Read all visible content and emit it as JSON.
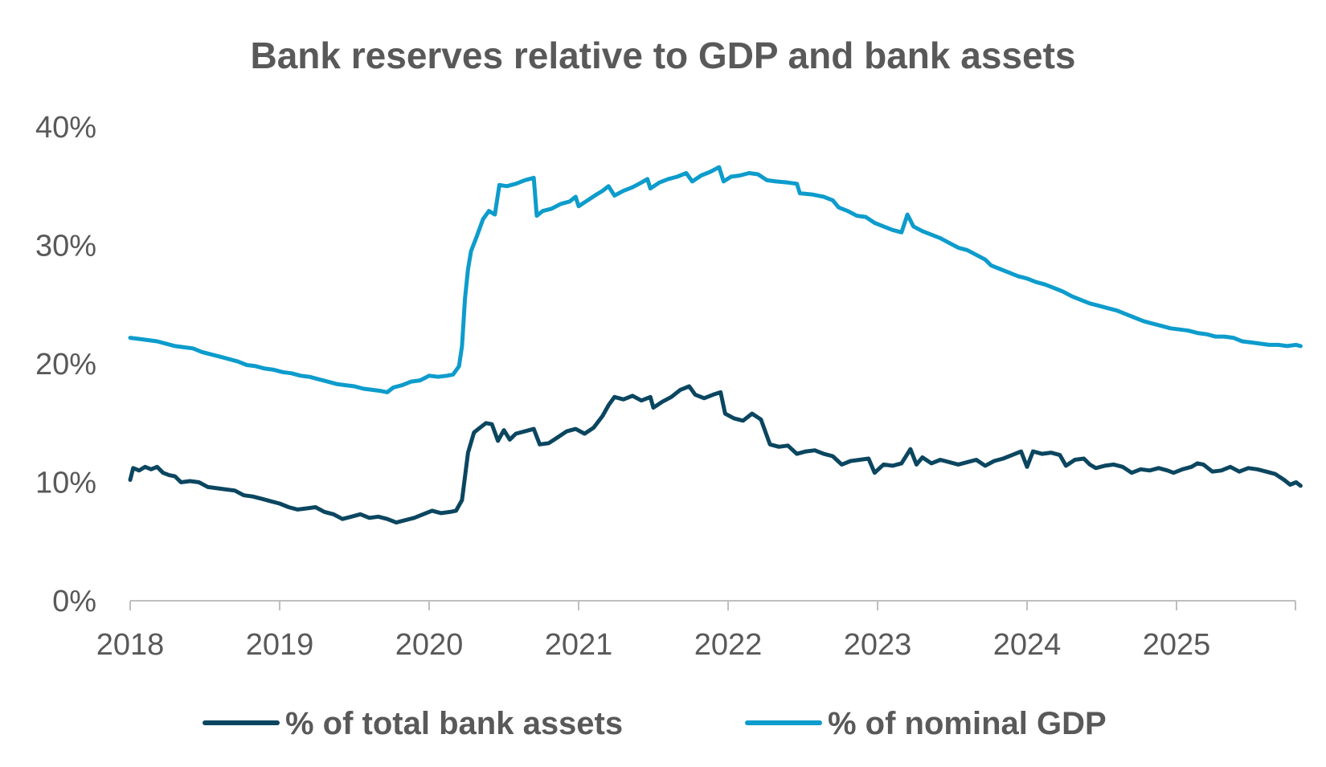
{
  "chart_data": {
    "type": "line",
    "title": "Bank reserves relative to GDP and bank assets",
    "xlabel": "",
    "ylabel": "",
    "ylim": [
      0,
      40
    ],
    "xlim": [
      2018.0,
      2025.83
    ],
    "grid": false,
    "legend_position": "bottom",
    "y_ticks": [
      {
        "value": 0,
        "label": "0%"
      },
      {
        "value": 10,
        "label": "10%"
      },
      {
        "value": 20,
        "label": "20%"
      },
      {
        "value": 30,
        "label": "30%"
      },
      {
        "value": 40,
        "label": "40%"
      }
    ],
    "x_ticks": [
      {
        "value": 2018,
        "label": "2018"
      },
      {
        "value": 2019,
        "label": "2019"
      },
      {
        "value": 2020,
        "label": "2020"
      },
      {
        "value": 2021,
        "label": "2021"
      },
      {
        "value": 2022,
        "label": "2022"
      },
      {
        "value": 2023,
        "label": "2023"
      },
      {
        "value": 2024,
        "label": "2024"
      },
      {
        "value": 2025,
        "label": "2025"
      }
    ],
    "series": [
      {
        "name": "% of total bank assets",
        "color": "#0b4660",
        "points": [
          [
            2018.0,
            10.2
          ],
          [
            2018.02,
            11.2
          ],
          [
            2018.06,
            11.0
          ],
          [
            2018.1,
            11.3
          ],
          [
            2018.14,
            11.1
          ],
          [
            2018.18,
            11.3
          ],
          [
            2018.22,
            10.8
          ],
          [
            2018.26,
            10.6
          ],
          [
            2018.3,
            10.5
          ],
          [
            2018.34,
            10.0
          ],
          [
            2018.4,
            10.1
          ],
          [
            2018.46,
            10.0
          ],
          [
            2018.52,
            9.6
          ],
          [
            2018.58,
            9.5
          ],
          [
            2018.64,
            9.4
          ],
          [
            2018.7,
            9.3
          ],
          [
            2018.76,
            8.9
          ],
          [
            2018.82,
            8.8
          ],
          [
            2018.88,
            8.6
          ],
          [
            2018.94,
            8.4
          ],
          [
            2019.0,
            8.2
          ],
          [
            2019.06,
            7.9
          ],
          [
            2019.12,
            7.7
          ],
          [
            2019.18,
            7.8
          ],
          [
            2019.24,
            7.9
          ],
          [
            2019.3,
            7.5
          ],
          [
            2019.36,
            7.3
          ],
          [
            2019.42,
            6.9
          ],
          [
            2019.48,
            7.1
          ],
          [
            2019.54,
            7.3
          ],
          [
            2019.6,
            7.0
          ],
          [
            2019.66,
            7.1
          ],
          [
            2019.72,
            6.9
          ],
          [
            2019.78,
            6.6
          ],
          [
            2019.84,
            6.8
          ],
          [
            2019.9,
            7.0
          ],
          [
            2019.96,
            7.3
          ],
          [
            2020.02,
            7.6
          ],
          [
            2020.08,
            7.4
          ],
          [
            2020.14,
            7.5
          ],
          [
            2020.18,
            7.6
          ],
          [
            2020.22,
            8.5
          ],
          [
            2020.26,
            12.5
          ],
          [
            2020.3,
            14.2
          ],
          [
            2020.34,
            14.6
          ],
          [
            2020.38,
            15.0
          ],
          [
            2020.42,
            14.9
          ],
          [
            2020.46,
            13.5
          ],
          [
            2020.5,
            14.4
          ],
          [
            2020.54,
            13.6
          ],
          [
            2020.58,
            14.1
          ],
          [
            2020.64,
            14.3
          ],
          [
            2020.7,
            14.5
          ],
          [
            2020.74,
            13.2
          ],
          [
            2020.8,
            13.3
          ],
          [
            2020.86,
            13.8
          ],
          [
            2020.92,
            14.3
          ],
          [
            2020.98,
            14.5
          ],
          [
            2021.04,
            14.1
          ],
          [
            2021.1,
            14.6
          ],
          [
            2021.16,
            15.6
          ],
          [
            2021.2,
            16.5
          ],
          [
            2021.24,
            17.2
          ],
          [
            2021.3,
            17.0
          ],
          [
            2021.36,
            17.3
          ],
          [
            2021.42,
            16.9
          ],
          [
            2021.48,
            17.2
          ],
          [
            2021.5,
            16.3
          ],
          [
            2021.56,
            16.8
          ],
          [
            2021.62,
            17.2
          ],
          [
            2021.68,
            17.8
          ],
          [
            2021.74,
            18.1
          ],
          [
            2021.78,
            17.4
          ],
          [
            2021.84,
            17.1
          ],
          [
            2021.9,
            17.4
          ],
          [
            2021.95,
            17.6
          ],
          [
            2021.98,
            15.8
          ],
          [
            2022.04,
            15.4
          ],
          [
            2022.1,
            15.2
          ],
          [
            2022.16,
            15.8
          ],
          [
            2022.22,
            15.3
          ],
          [
            2022.28,
            13.2
          ],
          [
            2022.34,
            13.0
          ],
          [
            2022.4,
            13.1
          ],
          [
            2022.46,
            12.4
          ],
          [
            2022.52,
            12.6
          ],
          [
            2022.58,
            12.7
          ],
          [
            2022.64,
            12.4
          ],
          [
            2022.7,
            12.2
          ],
          [
            2022.76,
            11.5
          ],
          [
            2022.82,
            11.8
          ],
          [
            2022.88,
            11.9
          ],
          [
            2022.94,
            12.0
          ],
          [
            2022.98,
            10.8
          ],
          [
            2023.04,
            11.5
          ],
          [
            2023.1,
            11.4
          ],
          [
            2023.16,
            11.6
          ],
          [
            2023.22,
            12.8
          ],
          [
            2023.26,
            11.5
          ],
          [
            2023.3,
            12.1
          ],
          [
            2023.36,
            11.6
          ],
          [
            2023.42,
            11.9
          ],
          [
            2023.48,
            11.7
          ],
          [
            2023.54,
            11.5
          ],
          [
            2023.6,
            11.7
          ],
          [
            2023.66,
            11.9
          ],
          [
            2023.72,
            11.4
          ],
          [
            2023.78,
            11.8
          ],
          [
            2023.84,
            12.0
          ],
          [
            2023.9,
            12.3
          ],
          [
            2023.96,
            12.6
          ],
          [
            2024.0,
            11.3
          ],
          [
            2024.04,
            12.6
          ],
          [
            2024.1,
            12.4
          ],
          [
            2024.16,
            12.5
          ],
          [
            2024.22,
            12.3
          ],
          [
            2024.26,
            11.4
          ],
          [
            2024.32,
            11.9
          ],
          [
            2024.38,
            12.0
          ],
          [
            2024.42,
            11.5
          ],
          [
            2024.46,
            11.2
          ],
          [
            2024.52,
            11.4
          ],
          [
            2024.58,
            11.5
          ],
          [
            2024.64,
            11.3
          ],
          [
            2024.7,
            10.8
          ],
          [
            2024.76,
            11.1
          ],
          [
            2024.82,
            11.0
          ],
          [
            2024.88,
            11.2
          ],
          [
            2024.94,
            11.0
          ],
          [
            2024.98,
            10.8
          ],
          [
            2025.04,
            11.1
          ],
          [
            2025.1,
            11.3
          ],
          [
            2025.14,
            11.6
          ],
          [
            2025.18,
            11.5
          ],
          [
            2025.24,
            10.9
          ],
          [
            2025.3,
            11.0
          ],
          [
            2025.36,
            11.3
          ],
          [
            2025.42,
            10.9
          ],
          [
            2025.48,
            11.2
          ],
          [
            2025.54,
            11.1
          ],
          [
            2025.6,
            10.9
          ],
          [
            2025.66,
            10.7
          ],
          [
            2025.72,
            10.2
          ],
          [
            2025.76,
            9.8
          ],
          [
            2025.8,
            10.0
          ],
          [
            2025.83,
            9.7
          ]
        ]
      },
      {
        "name": "% of nominal GDP",
        "color": "#0d9ccc",
        "points": [
          [
            2018.0,
            22.2
          ],
          [
            2018.06,
            22.1
          ],
          [
            2018.12,
            22.0
          ],
          [
            2018.18,
            21.9
          ],
          [
            2018.24,
            21.7
          ],
          [
            2018.3,
            21.5
          ],
          [
            2018.36,
            21.4
          ],
          [
            2018.42,
            21.3
          ],
          [
            2018.48,
            21.0
          ],
          [
            2018.54,
            20.8
          ],
          [
            2018.6,
            20.6
          ],
          [
            2018.66,
            20.4
          ],
          [
            2018.72,
            20.2
          ],
          [
            2018.78,
            19.9
          ],
          [
            2018.84,
            19.8
          ],
          [
            2018.9,
            19.6
          ],
          [
            2018.96,
            19.5
          ],
          [
            2019.02,
            19.3
          ],
          [
            2019.08,
            19.2
          ],
          [
            2019.14,
            19.0
          ],
          [
            2019.2,
            18.9
          ],
          [
            2019.26,
            18.7
          ],
          [
            2019.32,
            18.5
          ],
          [
            2019.38,
            18.3
          ],
          [
            2019.44,
            18.2
          ],
          [
            2019.5,
            18.1
          ],
          [
            2019.56,
            17.9
          ],
          [
            2019.62,
            17.8
          ],
          [
            2019.68,
            17.7
          ],
          [
            2019.72,
            17.6
          ],
          [
            2019.76,
            18.0
          ],
          [
            2019.82,
            18.2
          ],
          [
            2019.88,
            18.5
          ],
          [
            2019.94,
            18.6
          ],
          [
            2020.0,
            19.0
          ],
          [
            2020.06,
            18.9
          ],
          [
            2020.12,
            19.0
          ],
          [
            2020.16,
            19.1
          ],
          [
            2020.2,
            19.8
          ],
          [
            2020.22,
            21.5
          ],
          [
            2020.24,
            25.5
          ],
          [
            2020.26,
            28.0
          ],
          [
            2020.28,
            29.5
          ],
          [
            2020.32,
            30.8
          ],
          [
            2020.36,
            32.2
          ],
          [
            2020.4,
            32.9
          ],
          [
            2020.44,
            32.6
          ],
          [
            2020.47,
            35.1
          ],
          [
            2020.52,
            35.0
          ],
          [
            2020.58,
            35.2
          ],
          [
            2020.64,
            35.5
          ],
          [
            2020.7,
            35.7
          ],
          [
            2020.72,
            32.5
          ],
          [
            2020.76,
            32.9
          ],
          [
            2020.82,
            33.1
          ],
          [
            2020.88,
            33.5
          ],
          [
            2020.94,
            33.7
          ],
          [
            2020.98,
            34.1
          ],
          [
            2021.0,
            33.3
          ],
          [
            2021.06,
            33.8
          ],
          [
            2021.12,
            34.3
          ],
          [
            2021.16,
            34.6
          ],
          [
            2021.2,
            35.0
          ],
          [
            2021.24,
            34.2
          ],
          [
            2021.3,
            34.6
          ],
          [
            2021.36,
            34.9
          ],
          [
            2021.42,
            35.3
          ],
          [
            2021.46,
            35.6
          ],
          [
            2021.48,
            34.8
          ],
          [
            2021.54,
            35.3
          ],
          [
            2021.6,
            35.6
          ],
          [
            2021.66,
            35.8
          ],
          [
            2021.72,
            36.1
          ],
          [
            2021.76,
            35.4
          ],
          [
            2021.82,
            35.9
          ],
          [
            2021.88,
            36.2
          ],
          [
            2021.94,
            36.6
          ],
          [
            2021.97,
            35.4
          ],
          [
            2022.02,
            35.8
          ],
          [
            2022.08,
            35.9
          ],
          [
            2022.14,
            36.1
          ],
          [
            2022.2,
            36.0
          ],
          [
            2022.26,
            35.5
          ],
          [
            2022.32,
            35.4
          ],
          [
            2022.4,
            35.3
          ],
          [
            2022.46,
            35.2
          ],
          [
            2022.48,
            34.4
          ],
          [
            2022.56,
            34.3
          ],
          [
            2022.64,
            34.1
          ],
          [
            2022.7,
            33.8
          ],
          [
            2022.74,
            33.2
          ],
          [
            2022.8,
            32.9
          ],
          [
            2022.86,
            32.5
          ],
          [
            2022.92,
            32.4
          ],
          [
            2022.98,
            31.9
          ],
          [
            2023.04,
            31.6
          ],
          [
            2023.1,
            31.3
          ],
          [
            2023.16,
            31.1
          ],
          [
            2023.2,
            32.6
          ],
          [
            2023.24,
            31.6
          ],
          [
            2023.3,
            31.2
          ],
          [
            2023.36,
            30.9
          ],
          [
            2023.42,
            30.6
          ],
          [
            2023.48,
            30.2
          ],
          [
            2023.54,
            29.8
          ],
          [
            2023.6,
            29.6
          ],
          [
            2023.66,
            29.2
          ],
          [
            2023.72,
            28.8
          ],
          [
            2023.76,
            28.3
          ],
          [
            2023.82,
            28.0
          ],
          [
            2023.88,
            27.7
          ],
          [
            2023.94,
            27.4
          ],
          [
            2024.0,
            27.2
          ],
          [
            2024.06,
            26.9
          ],
          [
            2024.12,
            26.7
          ],
          [
            2024.18,
            26.4
          ],
          [
            2024.24,
            26.1
          ],
          [
            2024.3,
            25.7
          ],
          [
            2024.36,
            25.4
          ],
          [
            2024.42,
            25.1
          ],
          [
            2024.48,
            24.9
          ],
          [
            2024.54,
            24.7
          ],
          [
            2024.6,
            24.5
          ],
          [
            2024.66,
            24.2
          ],
          [
            2024.72,
            23.9
          ],
          [
            2024.78,
            23.6
          ],
          [
            2024.84,
            23.4
          ],
          [
            2024.9,
            23.2
          ],
          [
            2024.96,
            23.0
          ],
          [
            2025.02,
            22.9
          ],
          [
            2025.08,
            22.8
          ],
          [
            2025.14,
            22.6
          ],
          [
            2025.2,
            22.5
          ],
          [
            2025.26,
            22.3
          ],
          [
            2025.32,
            22.3
          ],
          [
            2025.38,
            22.2
          ],
          [
            2025.44,
            21.9
          ],
          [
            2025.5,
            21.8
          ],
          [
            2025.56,
            21.7
          ],
          [
            2025.62,
            21.6
          ],
          [
            2025.68,
            21.6
          ],
          [
            2025.74,
            21.5
          ],
          [
            2025.8,
            21.6
          ],
          [
            2025.83,
            21.5
          ]
        ]
      }
    ]
  }
}
